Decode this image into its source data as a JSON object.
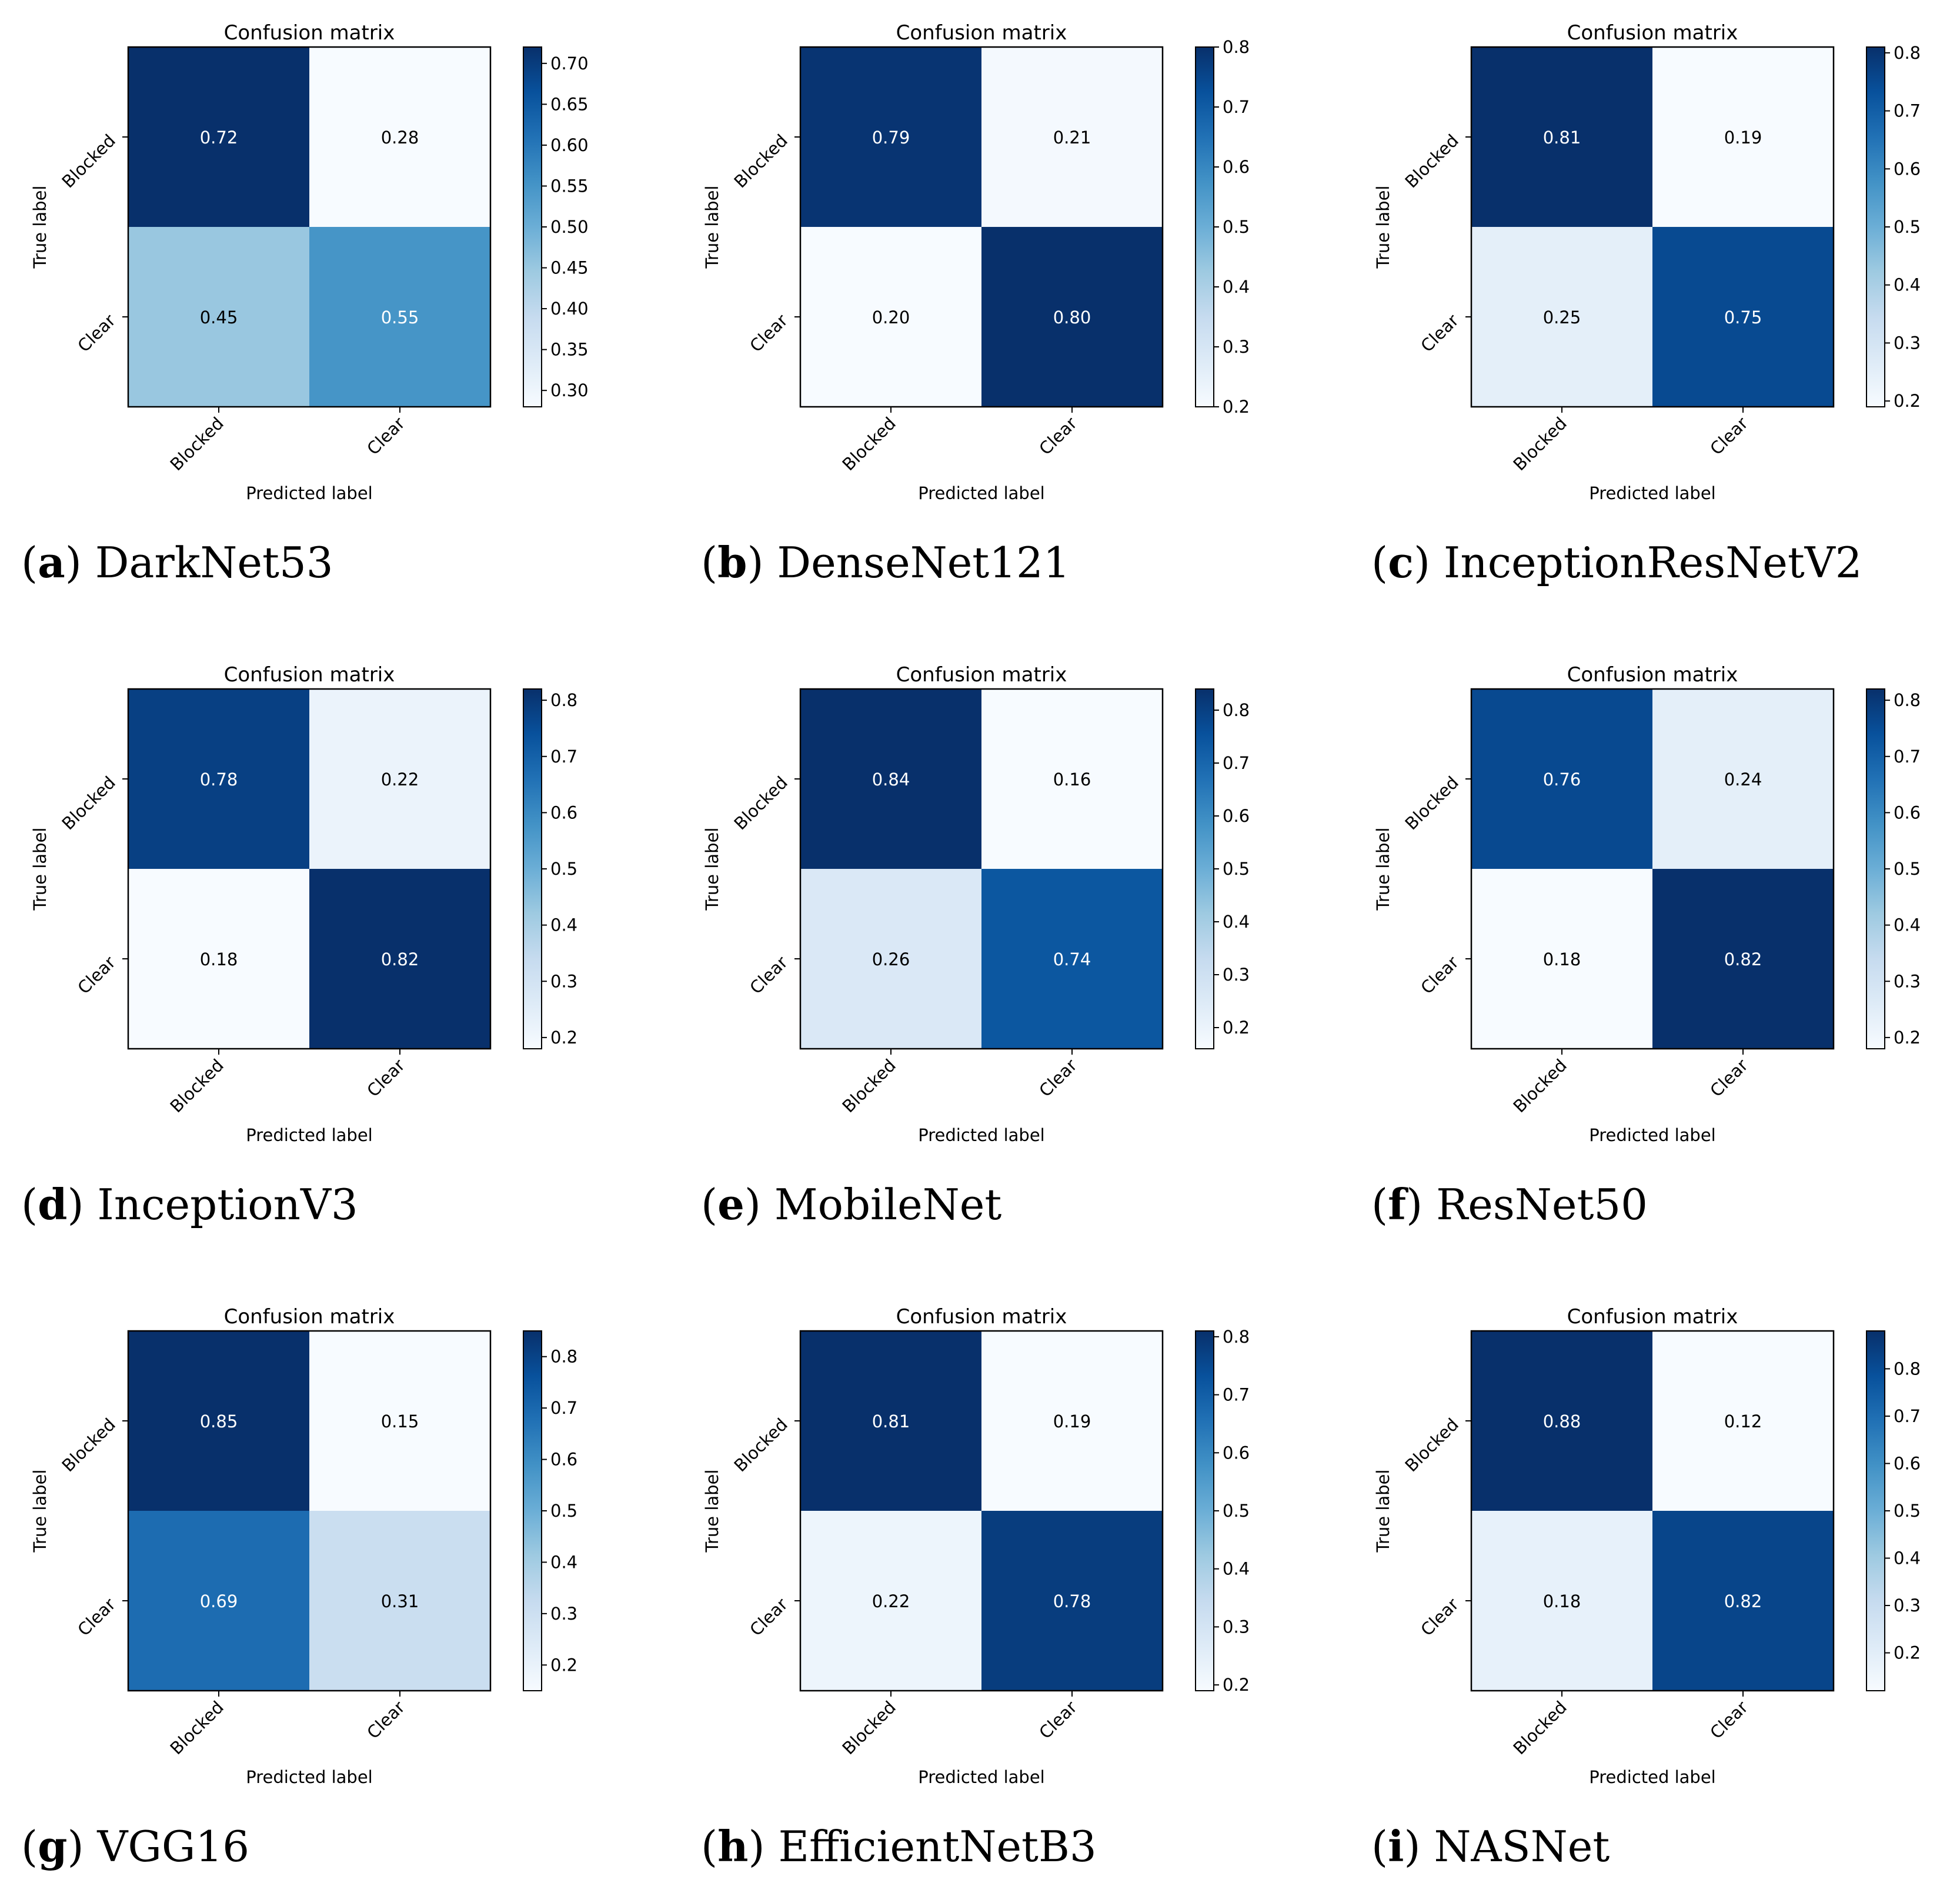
{
  "chart_data": [
    {
      "type": "heatmap",
      "title": "Confusion matrix",
      "xlabel": "Predicted label",
      "ylabel": "True label",
      "row_labels": [
        "Blocked",
        "Clear"
      ],
      "col_labels": [
        "Blocked",
        "Clear"
      ],
      "values": [
        [
          0.72,
          0.28
        ],
        [
          0.45,
          0.55
        ]
      ],
      "cell_labels": [
        [
          "0.72",
          "0.28"
        ],
        [
          "0.45",
          "0.55"
        ]
      ],
      "colorbar": {
        "min": 0.28,
        "max": 0.72,
        "ticks": [
          "0.30",
          "0.35",
          "0.40",
          "0.45",
          "0.50",
          "0.55",
          "0.60",
          "0.65",
          "0.70"
        ]
      },
      "caption": {
        "letter": "a",
        "name": "DarkNet53"
      }
    },
    {
      "type": "heatmap",
      "title": "Confusion matrix",
      "xlabel": "Predicted label",
      "ylabel": "True label",
      "row_labels": [
        "Blocked",
        "Clear"
      ],
      "col_labels": [
        "Blocked",
        "Clear"
      ],
      "values": [
        [
          0.79,
          0.21
        ],
        [
          0.2,
          0.8
        ]
      ],
      "cell_labels": [
        [
          "0.79",
          "0.21"
        ],
        [
          "0.20",
          "0.80"
        ]
      ],
      "colorbar": {
        "min": 0.2,
        "max": 0.8,
        "ticks": [
          "0.2",
          "0.3",
          "0.4",
          "0.5",
          "0.6",
          "0.7",
          "0.8"
        ]
      },
      "caption": {
        "letter": "b",
        "name": "DenseNet121"
      }
    },
    {
      "type": "heatmap",
      "title": "Confusion matrix",
      "xlabel": "Predicted label",
      "ylabel": "True label",
      "row_labels": [
        "Blocked",
        "Clear"
      ],
      "col_labels": [
        "Blocked",
        "Clear"
      ],
      "values": [
        [
          0.81,
          0.19
        ],
        [
          0.25,
          0.75
        ]
      ],
      "cell_labels": [
        [
          "0.81",
          "0.19"
        ],
        [
          "0.25",
          "0.75"
        ]
      ],
      "colorbar": {
        "min": 0.19,
        "max": 0.81,
        "ticks": [
          "0.2",
          "0.3",
          "0.4",
          "0.5",
          "0.6",
          "0.7",
          "0.8"
        ]
      },
      "caption": {
        "letter": "c",
        "name": "InceptionResNetV2"
      }
    },
    {
      "type": "heatmap",
      "title": "Confusion matrix",
      "xlabel": "Predicted label",
      "ylabel": "True label",
      "row_labels": [
        "Blocked",
        "Clear"
      ],
      "col_labels": [
        "Blocked",
        "Clear"
      ],
      "values": [
        [
          0.78,
          0.22
        ],
        [
          0.18,
          0.82
        ]
      ],
      "cell_labels": [
        [
          "0.78",
          "0.22"
        ],
        [
          "0.18",
          "0.82"
        ]
      ],
      "colorbar": {
        "min": 0.18,
        "max": 0.82,
        "ticks": [
          "0.2",
          "0.3",
          "0.4",
          "0.5",
          "0.6",
          "0.7",
          "0.8"
        ]
      },
      "caption": {
        "letter": "d",
        "name": "InceptionV3"
      }
    },
    {
      "type": "heatmap",
      "title": "Confusion matrix",
      "xlabel": "Predicted label",
      "ylabel": "True label",
      "row_labels": [
        "Blocked",
        "Clear"
      ],
      "col_labels": [
        "Blocked",
        "Clear"
      ],
      "values": [
        [
          0.84,
          0.16
        ],
        [
          0.26,
          0.74
        ]
      ],
      "cell_labels": [
        [
          "0.84",
          "0.16"
        ],
        [
          "0.26",
          "0.74"
        ]
      ],
      "colorbar": {
        "min": 0.16,
        "max": 0.84,
        "ticks": [
          "0.2",
          "0.3",
          "0.4",
          "0.5",
          "0.6",
          "0.7",
          "0.8"
        ]
      },
      "caption": {
        "letter": "e",
        "name": "MobileNet"
      }
    },
    {
      "type": "heatmap",
      "title": "Confusion matrix",
      "xlabel": "Predicted label",
      "ylabel": "True label",
      "row_labels": [
        "Blocked",
        "Clear"
      ],
      "col_labels": [
        "Blocked",
        "Clear"
      ],
      "values": [
        [
          0.76,
          0.24
        ],
        [
          0.18,
          0.82
        ]
      ],
      "cell_labels": [
        [
          "0.76",
          "0.24"
        ],
        [
          "0.18",
          "0.82"
        ]
      ],
      "colorbar": {
        "min": 0.18,
        "max": 0.82,
        "ticks": [
          "0.2",
          "0.3",
          "0.4",
          "0.5",
          "0.6",
          "0.7",
          "0.8"
        ]
      },
      "caption": {
        "letter": "f",
        "name": "ResNet50"
      }
    },
    {
      "type": "heatmap",
      "title": "Confusion matrix",
      "xlabel": "Predicted label",
      "ylabel": "True label",
      "row_labels": [
        "Blocked",
        "Clear"
      ],
      "col_labels": [
        "Blocked",
        "Clear"
      ],
      "values": [
        [
          0.85,
          0.15
        ],
        [
          0.69,
          0.31
        ]
      ],
      "cell_labels": [
        [
          "0.85",
          "0.15"
        ],
        [
          "0.69",
          "0.31"
        ]
      ],
      "colorbar": {
        "min": 0.15,
        "max": 0.85,
        "ticks": [
          "0.2",
          "0.3",
          "0.4",
          "0.5",
          "0.6",
          "0.7",
          "0.8"
        ]
      },
      "caption": {
        "letter": "g",
        "name": "VGG16"
      }
    },
    {
      "type": "heatmap",
      "title": "Confusion matrix",
      "xlabel": "Predicted label",
      "ylabel": "True label",
      "row_labels": [
        "Blocked",
        "Clear"
      ],
      "col_labels": [
        "Blocked",
        "Clear"
      ],
      "values": [
        [
          0.81,
          0.19
        ],
        [
          0.22,
          0.78
        ]
      ],
      "cell_labels": [
        [
          "0.81",
          "0.19"
        ],
        [
          "0.22",
          "0.78"
        ]
      ],
      "colorbar": {
        "min": 0.19,
        "max": 0.81,
        "ticks": [
          "0.2",
          "0.3",
          "0.4",
          "0.5",
          "0.6",
          "0.7",
          "0.8"
        ]
      },
      "caption": {
        "letter": "h",
        "name": "EfficientNetB3"
      }
    },
    {
      "type": "heatmap",
      "title": "Confusion matrix",
      "xlabel": "Predicted label",
      "ylabel": "True label",
      "row_labels": [
        "Blocked",
        "Clear"
      ],
      "col_labels": [
        "Blocked",
        "Clear"
      ],
      "values": [
        [
          0.88,
          0.12
        ],
        [
          0.18,
          0.82
        ]
      ],
      "cell_labels": [
        [
          "0.88",
          "0.12"
        ],
        [
          "0.18",
          "0.82"
        ]
      ],
      "colorbar": {
        "min": 0.12,
        "max": 0.88,
        "ticks": [
          "0.2",
          "0.3",
          "0.4",
          "0.5",
          "0.6",
          "0.7",
          "0.8"
        ]
      },
      "caption": {
        "letter": "i",
        "name": "NASNet"
      }
    }
  ],
  "colormap": [
    "#f7fbff",
    "#deebf7",
    "#c6dbef",
    "#9ecae1",
    "#6baed6",
    "#4292c6",
    "#2171b5",
    "#08519c",
    "#08306b"
  ]
}
